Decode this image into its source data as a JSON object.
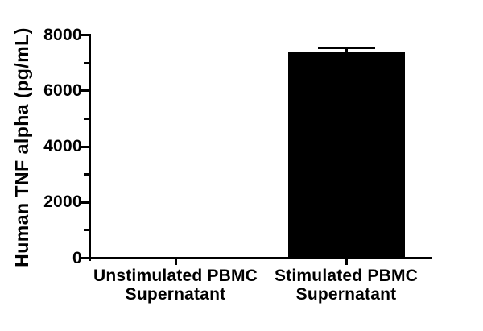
{
  "colors": {
    "background": "#ffffff",
    "bar": "#000000",
    "axis": "#000000",
    "text": "#000000"
  },
  "chart_data": {
    "type": "bar",
    "title": "",
    "xlabel": "",
    "ylabel": "Human TNF alpha (pg/mL)",
    "categories": [
      "Unstimulated PBMC Supernatant",
      "Stimulated PBMC Supernatant"
    ],
    "category_lines": [
      [
        "Unstimulated PBMC",
        "Supernatant"
      ],
      [
        "Stimulated PBMC",
        "Supernatant"
      ]
    ],
    "values": [
      0,
      7414
    ],
    "errors": [
      0,
      110
    ],
    "ylim": [
      0,
      8000
    ],
    "yticks": [
      0,
      2000,
      4000,
      6000,
      8000
    ],
    "yminorticks": [
      1000,
      3000,
      5000,
      7000
    ],
    "grid": false,
    "legend": false,
    "bar_color": "#000000"
  }
}
